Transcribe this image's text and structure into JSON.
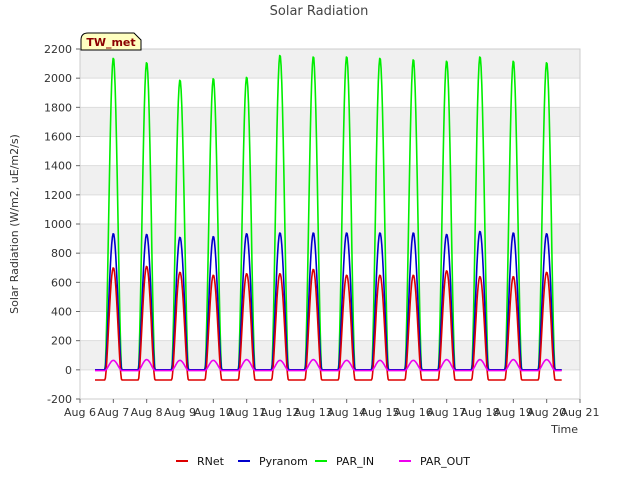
{
  "chart_data": {
    "type": "line",
    "title": "Solar Radiation",
    "xlabel": "Time",
    "ylabel": "Solar Radiation (W/m2, uE/m2/s)",
    "station_label": "TW_met",
    "x_ticks": [
      "Aug 6",
      "Aug 7",
      "Aug 8",
      "Aug 9",
      "Aug 10",
      "Aug 11",
      "Aug 12",
      "Aug 13",
      "Aug 14",
      "Aug 15",
      "Aug 16",
      "Aug 17",
      "Aug 18",
      "Aug 19",
      "Aug 20",
      "Aug 21"
    ],
    "xlim": [
      "Aug 6",
      "Aug 21"
    ],
    "ylim": [
      -200,
      2200
    ],
    "y_ticks": [
      -200,
      0,
      200,
      400,
      600,
      800,
      1000,
      1200,
      1400,
      1600,
      1800,
      2000,
      2200
    ],
    "grid": true,
    "legend_position": "bottom",
    "days": [
      "Aug 6",
      "Aug 7",
      "Aug 8",
      "Aug 9",
      "Aug 10",
      "Aug 11",
      "Aug 12",
      "Aug 13",
      "Aug 14",
      "Aug 15",
      "Aug 16",
      "Aug 17",
      "Aug 18",
      "Aug 19"
    ],
    "series": [
      {
        "name": "RNet",
        "color": "#dd0000",
        "daily_peak": [
          700,
          710,
          670,
          650,
          660,
          660,
          690,
          650,
          650,
          650,
          680,
          640,
          640,
          670
        ],
        "night": -70
      },
      {
        "name": "Pyranom",
        "color": "#0000cc",
        "daily_peak": [
          935,
          930,
          910,
          915,
          935,
          940,
          940,
          940,
          940,
          940,
          930,
          950,
          940,
          935
        ],
        "night": 0
      },
      {
        "name": "PAR_IN",
        "color": "#00ee00",
        "daily_peak": [
          2140,
          2110,
          1990,
          2000,
          2010,
          2160,
          2150,
          2150,
          2140,
          2130,
          2120,
          2150,
          2120,
          2110
        ],
        "night": 0
      },
      {
        "name": "PAR_OUT",
        "color": "#ee00ee",
        "daily_peak": [
          65,
          70,
          65,
          65,
          70,
          65,
          70,
          65,
          65,
          65,
          70,
          70,
          70,
          70
        ],
        "night": -5
      }
    ]
  }
}
